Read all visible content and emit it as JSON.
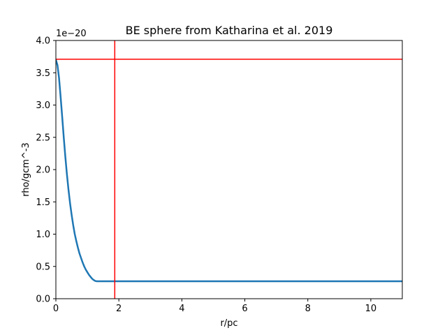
{
  "chart_data": {
    "type": "line",
    "title": "BE sphere from Katharina et al. 2019",
    "xlabel": "r/pc",
    "ylabel": "rho/gcm^-3",
    "y_offset_label": "1e−20",
    "xlim": [
      0,
      11
    ],
    "ylim": [
      0,
      4.0
    ],
    "x_ticks": [
      0,
      2,
      4,
      6,
      8,
      10
    ],
    "x_tick_labels": [
      "0",
      "2",
      "4",
      "6",
      "8",
      "10"
    ],
    "y_ticks": [
      0,
      0.5,
      1.0,
      1.5,
      2.0,
      2.5,
      3.0,
      3.5,
      4.0
    ],
    "y_tick_labels": [
      "0.0",
      "0.5",
      "1.0",
      "1.5",
      "2.0",
      "2.5",
      "3.0",
      "3.5",
      "4.0"
    ],
    "grid": false,
    "legend": "none",
    "series": [
      {
        "color": "#1f77b4",
        "x": [
          0,
          0.05,
          0.1,
          0.15,
          0.2,
          0.25,
          0.3,
          0.35,
          0.4,
          0.45,
          0.5,
          0.55,
          0.6,
          0.65,
          0.7,
          0.75,
          0.8,
          0.85,
          0.9,
          0.95,
          1.0,
          1.05,
          1.1,
          1.15,
          1.2,
          1.25,
          1.3,
          2,
          3,
          4,
          5,
          6,
          7,
          8,
          9,
          10,
          11
        ],
        "y": [
          3.7,
          3.62,
          3.42,
          3.13,
          2.82,
          2.5,
          2.2,
          1.93,
          1.69,
          1.48,
          1.3,
          1.14,
          1.0,
          0.89,
          0.79,
          0.7,
          0.63,
          0.56,
          0.5,
          0.45,
          0.41,
          0.37,
          0.34,
          0.31,
          0.29,
          0.275,
          0.27,
          0.27,
          0.27,
          0.27,
          0.27,
          0.27,
          0.27,
          0.27,
          0.27,
          0.27,
          0.27
        ]
      }
    ],
    "reference_lines": [
      {
        "orientation": "horizontal",
        "value": 3.71,
        "color": "#ff0000"
      },
      {
        "orientation": "vertical",
        "value": 1.87,
        "color": "#ff0000"
      }
    ]
  }
}
